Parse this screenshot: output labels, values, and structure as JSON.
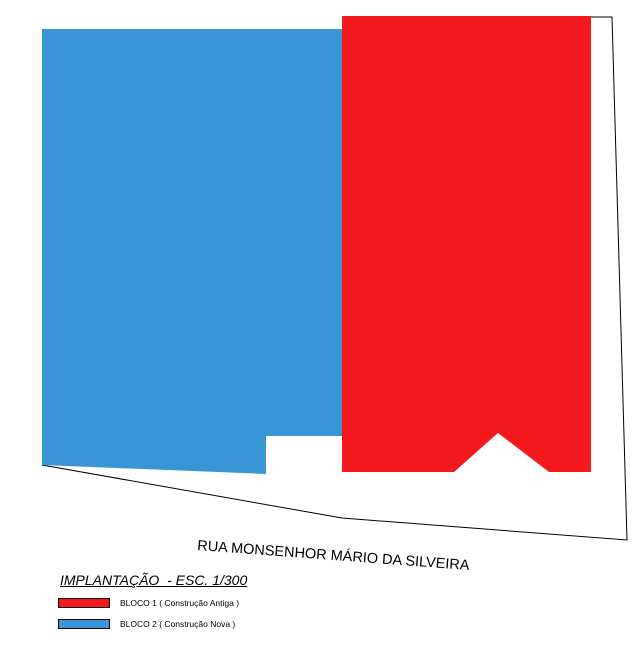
{
  "plan": {
    "street_name": "RUA MONSENHOR MÁRIO DA SILVEIRA",
    "colors": {
      "block_1": "#f4191c",
      "block_2": "#3996d6",
      "outline": "#000000"
    }
  },
  "legend": {
    "title": "IMPLANTAÇÃO  - ESC. 1/300",
    "items": [
      {
        "label": "BLOCO 1 ( Construção Antiga )",
        "color": "#f4191c"
      },
      {
        "label": "BLOCO 2 ( Construção Nova )",
        "color": "#3996d6"
      }
    ]
  }
}
